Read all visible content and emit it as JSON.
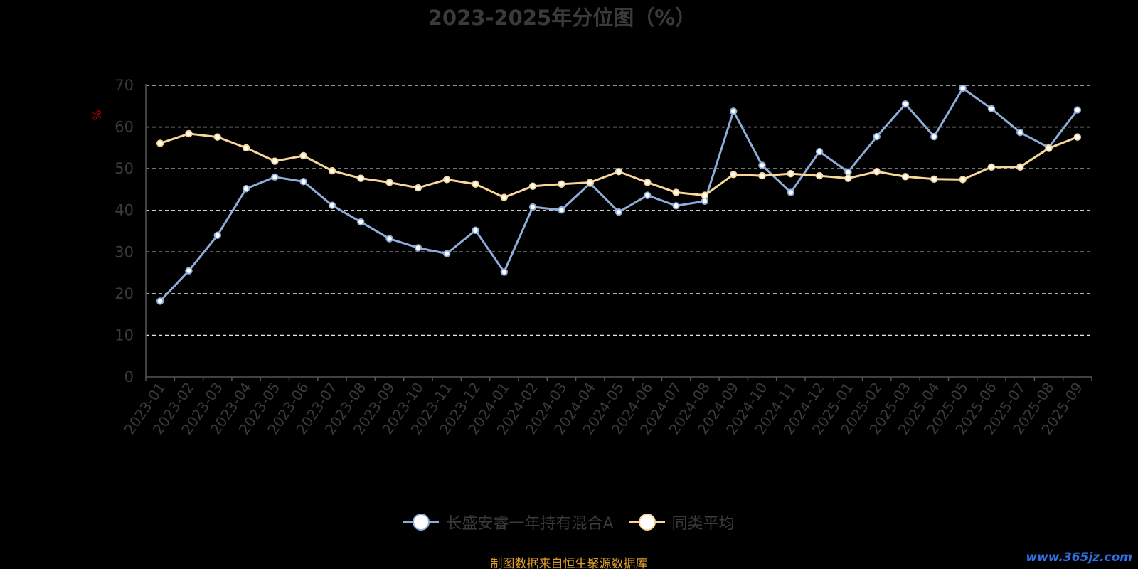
{
  "chart_data": {
    "type": "line",
    "title": "2023-2025年分位图（%）",
    "ylabel": "%",
    "xlabel": "",
    "ylim": [
      0,
      70
    ],
    "yticks": [
      0,
      10,
      20,
      30,
      40,
      50,
      60,
      70
    ],
    "grid": true,
    "legend_position": "bottom",
    "categories": [
      "2023-01",
      "2023-02",
      "2023-03",
      "2023-04",
      "2023-05",
      "2023-06",
      "2023-07",
      "2023-08",
      "2023-09",
      "2023-10",
      "2023-11",
      "2023-12",
      "2024-01",
      "2024-02",
      "2024-03",
      "2024-04",
      "2024-05",
      "2024-06",
      "2024-07",
      "2024-08",
      "2024-09",
      "2024-10",
      "2024-11",
      "2024-12",
      "2025-01",
      "2025-02",
      "2025-03",
      "2025-04",
      "2025-05",
      "2025-06",
      "2025-07",
      "2025-08",
      "2025-09"
    ],
    "series": [
      {
        "name": "长盛安睿一年持有混合A",
        "color": "#8fadd8",
        "values": [
          18.2,
          25.5,
          34,
          45.2,
          48,
          46.9,
          41.2,
          37.2,
          33.2,
          31,
          29.6,
          35.2,
          25.2,
          40.8,
          40.1,
          46.5,
          39.6,
          43.6,
          41.1,
          42.2,
          63.8,
          50.8,
          44.3,
          54.1,
          49.2,
          57.7,
          65.5,
          57.7,
          69.3,
          64.4,
          58.7,
          55.1,
          64.1
        ]
      },
      {
        "name": "同类平均",
        "color": "#f7d79a",
        "values": [
          56.1,
          58.4,
          57.6,
          55,
          51.8,
          53.1,
          49.5,
          47.7,
          46.7,
          45.4,
          47.4,
          46.3,
          43.1,
          45.8,
          46.3,
          46.7,
          49.3,
          46.7,
          44.3,
          43.6,
          48.6,
          48.3,
          48.8,
          48.3,
          47.7,
          49.3,
          48.1,
          47.5,
          47.4,
          50.4,
          50.4,
          54.9,
          57.6
        ]
      }
    ]
  },
  "source_text": "制图数据来自恒生聚源数据库",
  "watermark_text": "www.365jz.com"
}
